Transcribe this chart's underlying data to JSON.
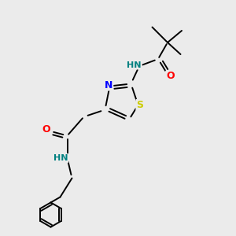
{
  "bg_color": "#ebebeb",
  "atom_colors": {
    "C": "#000000",
    "N": "#0000ff",
    "O": "#ff0000",
    "S": "#cccc00",
    "H_color": "#008080"
  },
  "bond_color": "#000000",
  "bond_lw": 1.4,
  "font_size": 8,
  "fig_width": 3.0,
  "fig_height": 3.0,
  "dpi": 100,
  "xlim": [
    0,
    10
  ],
  "ylim": [
    0,
    10
  ]
}
